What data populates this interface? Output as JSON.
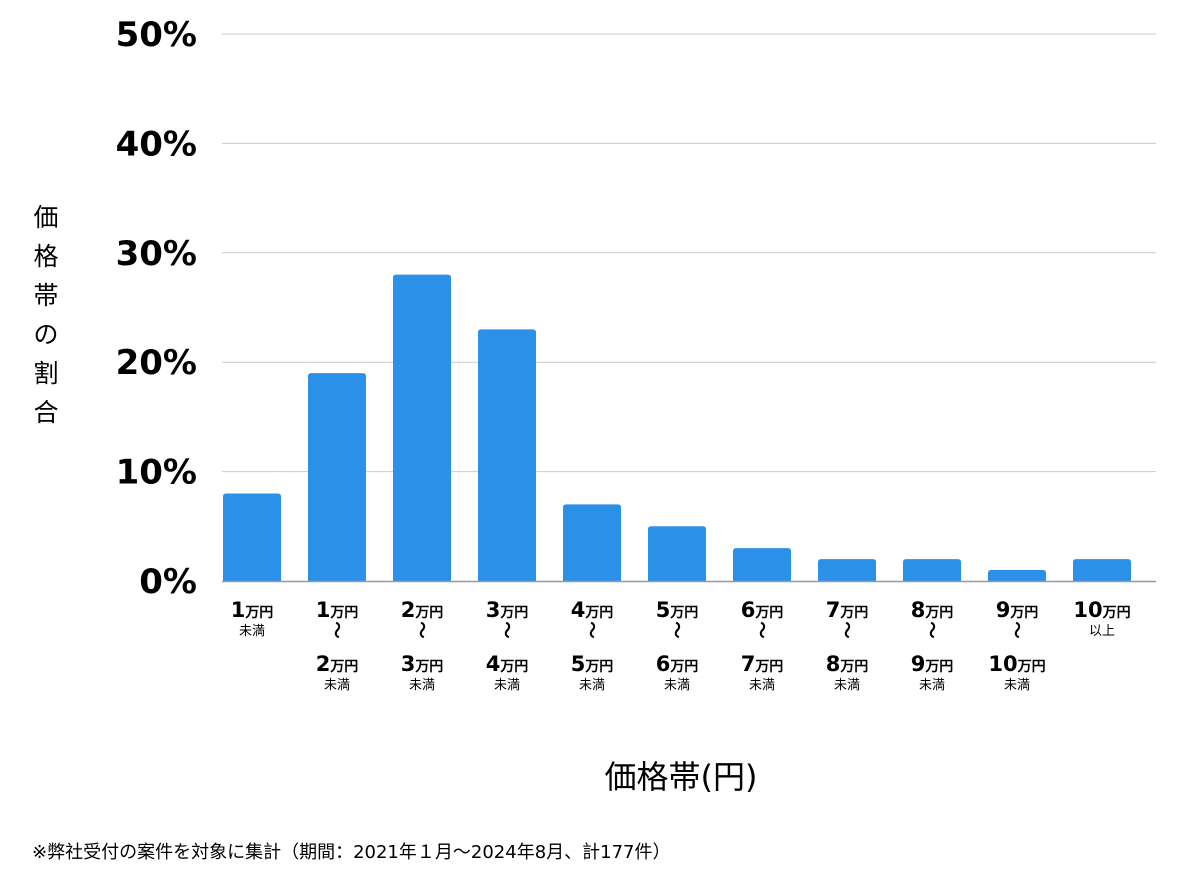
{
  "chart_data": {
    "type": "bar",
    "categories": [
      {
        "lines": [
          {
            "num": "1",
            "unit": "万円"
          }
        ],
        "sub": "未満"
      },
      {
        "lines": [
          {
            "num": "1",
            "unit": "万円"
          },
          {
            "num": "2",
            "unit": "万円"
          }
        ],
        "sub": "未満"
      },
      {
        "lines": [
          {
            "num": "2",
            "unit": "万円"
          },
          {
            "num": "3",
            "unit": "万円"
          }
        ],
        "sub": "未満"
      },
      {
        "lines": [
          {
            "num": "3",
            "unit": "万円"
          },
          {
            "num": "4",
            "unit": "万円"
          }
        ],
        "sub": "未満"
      },
      {
        "lines": [
          {
            "num": "4",
            "unit": "万円"
          },
          {
            "num": "5",
            "unit": "万円"
          }
        ],
        "sub": "未満"
      },
      {
        "lines": [
          {
            "num": "5",
            "unit": "万円"
          },
          {
            "num": "6",
            "unit": "万円"
          }
        ],
        "sub": "未満"
      },
      {
        "lines": [
          {
            "num": "6",
            "unit": "万円"
          },
          {
            "num": "7",
            "unit": "万円"
          }
        ],
        "sub": "未満"
      },
      {
        "lines": [
          {
            "num": "7",
            "unit": "万円"
          },
          {
            "num": "8",
            "unit": "万円"
          }
        ],
        "sub": "未満"
      },
      {
        "lines": [
          {
            "num": "8",
            "unit": "万円"
          },
          {
            "num": "9",
            "unit": "万円"
          }
        ],
        "sub": "未満"
      },
      {
        "lines": [
          {
            "num": "9",
            "unit": "万円"
          },
          {
            "num": "10",
            "unit": "万円"
          }
        ],
        "sub": "未満"
      },
      {
        "lines": [
          {
            "num": "10",
            "unit": "万円"
          }
        ],
        "sub": "以上"
      }
    ],
    "values": [
      8,
      19,
      28,
      23,
      7,
      5,
      3,
      2,
      2,
      1,
      2
    ],
    "value_unit": "%",
    "range_separator": "〜",
    "ylim": [
      0,
      50
    ],
    "yticks": [
      {
        "value": 0,
        "label": "0%"
      },
      {
        "value": 10,
        "label": "10%"
      },
      {
        "value": 20,
        "label": "20%"
      },
      {
        "value": 30,
        "label": "30%"
      },
      {
        "value": 40,
        "label": "40%"
      },
      {
        "value": 50,
        "label": "50%"
      }
    ],
    "ylabel": "価格帯の割合",
    "xlabel": "価格帯(円)",
    "grid": true,
    "bar_color": "#2b90e8",
    "grid_color": "#cccccc",
    "axis_color": "#999999"
  },
  "footnote": "※弊社受付の案件を対象に集計（期間：2021年１月～2024年8月、計177件）"
}
